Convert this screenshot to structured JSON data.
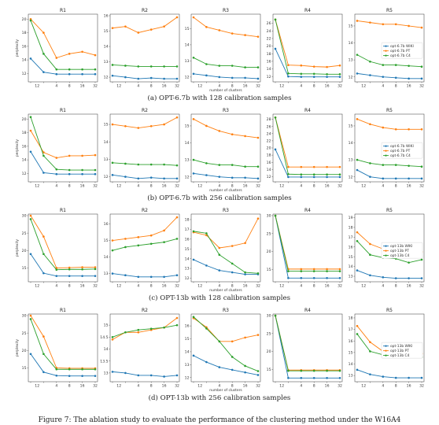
{
  "colors": {
    "wiki": "#1f77b4",
    "pt": "#ff7f0e",
    "c4": "#2ca02c"
  },
  "xlabel": "number of clusters",
  "ylabel": "perplexity",
  "x_ticks": [
    1,
    2,
    4,
    8,
    16,
    32
  ],
  "x_tick_labels": [
    "12",
    "4",
    "8",
    "16",
    "32"
  ],
  "figure_caption": "Figure 7: The ablation study to evaluate the performance of the clustering method under the W16A4",
  "chart_data": [
    {
      "type": "line",
      "group_caption": "(a) OPT-6.7b with 128 calibration samples",
      "legend": [
        "opt-6.7b WIKI",
        "opt-6.7b PT",
        "opt-6.7b C4"
      ],
      "panels": [
        {
          "title": "R1",
          "ylim": [
            11,
            20.5
          ],
          "yticks": [
            12,
            14,
            16,
            18,
            20
          ],
          "series": {
            "wiki": [
              14.2,
              12.2,
              11.9,
              11.9,
              11.9,
              11.9
            ],
            "pt": [
              20.0,
              18.0,
              14.3,
              14.9,
              15.2,
              14.7
            ],
            "c4": [
              19.8,
              14.9,
              12.6,
              12.6,
              12.6,
              12.6
            ]
          }
        },
        {
          "title": "R2",
          "ylim": [
            11.8,
            16.0
          ],
          "yticks": [
            12,
            13,
            14,
            15,
            16
          ],
          "series": {
            "wiki": [
              12.1,
              12.0,
              11.9,
              11.95,
              11.9,
              11.9
            ],
            "pt": [
              15.2,
              15.3,
              14.9,
              15.1,
              15.3,
              15.9
            ],
            "c4": [
              12.8,
              12.75,
              12.7,
              12.7,
              12.7,
              12.7
            ]
          }
        },
        {
          "title": "R3",
          "ylim": [
            11.8,
            15.8
          ],
          "yticks": [
            12,
            13,
            14,
            15
          ],
          "series": {
            "wiki": [
              12.2,
              12.1,
              12.0,
              11.95,
              11.95,
              11.9
            ],
            "pt": [
              15.7,
              15.1,
              14.9,
              14.7,
              14.6,
              14.5
            ],
            "c4": [
              13.2,
              12.8,
              12.7,
              12.7,
              12.6,
              12.6
            ]
          }
        },
        {
          "title": "R4",
          "ylim": [
            11,
            28
          ],
          "yticks": [
            12,
            14,
            16,
            18,
            20,
            22,
            24,
            26
          ],
          "series": {
            "wiki": [
              19.3,
              12.0,
              11.9,
              11.9,
              11.9,
              11.9
            ],
            "pt": [
              27.0,
              15.0,
              14.9,
              14.6,
              14.5,
              14.9
            ],
            "c4": [
              27.0,
              12.8,
              12.7,
              12.7,
              12.6,
              12.6
            ]
          }
        },
        {
          "title": "R5",
          "ylim": [
            11.8,
            15.6
          ],
          "yticks": [
            12,
            13,
            14,
            15
          ],
          "series": {
            "wiki": [
              12.2,
              12.1,
              12.0,
              11.95,
              11.9,
              11.9
            ],
            "pt": [
              15.3,
              15.2,
              15.1,
              15.1,
              15.0,
              14.9
            ],
            "c4": [
              13.3,
              12.9,
              12.7,
              12.7,
              12.65,
              12.6
            ]
          },
          "show_legend": true
        }
      ]
    },
    {
      "type": "line",
      "group_caption": "(b) OPT-6.7b with 256 calibration samples",
      "legend": [
        "opt-6.7b WIKI",
        "opt-6.7b PT",
        "opt-6.7b C4"
      ],
      "panels": [
        {
          "title": "R1",
          "ylim": [
            11,
            20.5
          ],
          "yticks": [
            12,
            14,
            16,
            18,
            20
          ],
          "series": {
            "wiki": [
              15.2,
              12.1,
              11.9,
              11.9,
              11.9,
              11.9
            ],
            "pt": [
              18.3,
              15.1,
              14.3,
              14.6,
              14.6,
              14.7
            ],
            "c4": [
              20.3,
              14.6,
              12.6,
              12.5,
              12.5,
              12.5
            ]
          }
        },
        {
          "title": "R2",
          "ylim": [
            11.8,
            15.5
          ],
          "yticks": [
            12,
            13,
            14,
            15
          ],
          "series": {
            "wiki": [
              12.1,
              12.0,
              11.9,
              11.95,
              11.9,
              11.9
            ],
            "pt": [
              15.0,
              14.9,
              14.8,
              14.9,
              15.0,
              15.4
            ],
            "c4": [
              12.8,
              12.75,
              12.7,
              12.7,
              12.7,
              12.65
            ]
          }
        },
        {
          "title": "R3",
          "ylim": [
            11.8,
            15.6
          ],
          "yticks": [
            12,
            13,
            14,
            15
          ],
          "series": {
            "wiki": [
              12.2,
              12.1,
              12.0,
              11.95,
              11.95,
              11.9
            ],
            "pt": [
              15.4,
              15.0,
              14.7,
              14.5,
              14.4,
              14.3
            ],
            "c4": [
              13.0,
              12.8,
              12.7,
              12.7,
              12.6,
              12.6
            ]
          }
        },
        {
          "title": "R4",
          "ylim": [
            11,
            29
          ],
          "yticks": [
            12,
            14,
            16,
            18,
            20,
            22,
            24,
            26,
            28
          ],
          "series": {
            "wiki": [
              19.6,
              11.9,
              11.9,
              11.9,
              11.9,
              11.9
            ],
            "pt": [
              28.5,
              14.7,
              14.7,
              14.7,
              14.7,
              14.7
            ],
            "c4": [
              28.5,
              12.7,
              12.6,
              12.6,
              12.6,
              12.6
            ]
          }
        },
        {
          "title": "R5",
          "ylim": [
            11.8,
            15.6
          ],
          "yticks": [
            12,
            13,
            14,
            15
          ],
          "series": {
            "wiki": [
              12.4,
              12.0,
              11.9,
              11.9,
              11.9,
              11.9
            ],
            "pt": [
              15.4,
              15.1,
              14.9,
              14.8,
              14.8,
              14.8
            ],
            "c4": [
              13.0,
              12.8,
              12.7,
              12.7,
              12.65,
              12.6
            ]
          },
          "show_legend": true
        }
      ]
    },
    {
      "type": "line",
      "group_caption": "(c) OPT-13b with 128 calibration samples",
      "legend": [
        "opt-13b WIKI",
        "opt-13b PT",
        "opt-13b C4"
      ],
      "panels": [
        {
          "title": "R1",
          "ylim": [
            11.5,
            30
          ],
          "yticks": [
            15,
            20,
            25,
            30
          ],
          "series": {
            "wiki": [
              19.0,
              13.5,
              12.7,
              12.7,
              12.7,
              12.7
            ],
            "pt": [
              30.0,
              24.0,
              15.0,
              15.1,
              15.2,
              15.2
            ],
            "c4": [
              29.0,
              19.0,
              14.5,
              14.6,
              14.6,
              14.7
            ]
          }
        },
        {
          "title": "R2",
          "ylim": [
            12.6,
            16.5
          ],
          "yticks": [
            13,
            14,
            15,
            16
          ],
          "series": {
            "wiki": [
              13.0,
              12.9,
              12.8,
              12.8,
              12.8,
              12.9
            ],
            "pt": [
              15.0,
              15.1,
              15.2,
              15.3,
              15.6,
              16.4
            ],
            "c4": [
              14.4,
              14.6,
              14.7,
              14.8,
              14.9,
              15.1
            ]
          }
        },
        {
          "title": "R3",
          "ylim": [
            11.8,
            18.4
          ],
          "yticks": [
            12,
            13,
            14,
            15,
            16,
            17,
            18
          ],
          "series": {
            "wiki": [
              13.9,
              13.3,
              12.8,
              12.6,
              12.4,
              12.4
            ],
            "pt": [
              16.7,
              16.4,
              15.1,
              15.3,
              15.6,
              18.1
            ],
            "c4": [
              16.8,
              16.6,
              14.4,
              13.5,
              12.6,
              12.5
            ]
          }
        },
        {
          "title": "R4",
          "ylim": [
            12,
            30
          ],
          "yticks": [
            15,
            20,
            25,
            30
          ],
          "series": {
            "wiki": [
              30.0,
              12.6,
              12.6,
              12.6,
              12.6,
              12.6
            ],
            "pt": [
              30.0,
              15.1,
              15.1,
              15.1,
              15.1,
              15.1
            ],
            "c4": [
              30.0,
              14.5,
              14.5,
              14.5,
              14.5,
              14.5
            ]
          }
        },
        {
          "title": "R5",
          "ylim": [
            12.6,
            19.2
          ],
          "yticks": [
            13,
            14,
            15,
            16,
            17,
            18,
            19
          ],
          "series": {
            "wiki": [
              13.6,
              13.1,
              12.9,
              12.8,
              12.8,
              12.8
            ],
            "pt": [
              17.5,
              16.3,
              15.8,
              15.7,
              15.6,
              15.5
            ],
            "c4": [
              16.6,
              15.2,
              14.9,
              14.8,
              14.4,
              14.7
            ]
          },
          "show_legend": true
        }
      ]
    },
    {
      "type": "line",
      "group_caption": "(d) OPT-13b with 256 calibration samples",
      "legend": [
        "opt-13b WIKI",
        "opt-13b PT",
        "opt-13b C4"
      ],
      "panels": [
        {
          "title": "R1",
          "ylim": [
            11.5,
            30
          ],
          "yticks": [
            15,
            20,
            25,
            30
          ],
          "series": {
            "wiki": [
              19.0,
              13.8,
              12.8,
              12.7,
              12.7,
              12.7
            ],
            "pt": [
              30.0,
              24.0,
              15.0,
              14.9,
              14.9,
              14.9
            ],
            "c4": [
              29.0,
              19.0,
              14.6,
              14.6,
              14.6,
              14.6
            ]
          }
        },
        {
          "title": "R2",
          "ylim": [
            12.7,
            15.4
          ],
          "yticks": [
            13.0,
            13.5,
            14.0,
            14.5,
            15.0
          ],
          "series": {
            "wiki": [
              13.05,
              13.0,
              12.9,
              12.9,
              12.85,
              12.9
            ],
            "pt": [
              14.4,
              14.7,
              14.7,
              14.8,
              14.9,
              15.3
            ],
            "c4": [
              14.5,
              14.7,
              14.8,
              14.85,
              14.9,
              15.0
            ]
          }
        },
        {
          "title": "R3",
          "ylim": [
            11.8,
            16.8
          ],
          "yticks": [
            12,
            13,
            14,
            15,
            16
          ],
          "series": {
            "wiki": [
              13.7,
              13.2,
              12.8,
              12.6,
              12.4,
              12.2
            ],
            "pt": [
              16.6,
              15.9,
              14.8,
              14.8,
              15.1,
              15.3
            ],
            "c4": [
              16.7,
              15.8,
              14.8,
              13.6,
              12.9,
              12.5
            ]
          }
        },
        {
          "title": "R4",
          "ylim": [
            12,
            30
          ],
          "yticks": [
            15,
            20,
            25,
            30
          ],
          "series": {
            "wiki": [
              30.0,
              12.6,
              12.6,
              12.6,
              12.6,
              12.6
            ],
            "pt": [
              30.0,
              14.8,
              14.8,
              14.8,
              14.8,
              14.8
            ],
            "c4": [
              30.0,
              14.6,
              14.6,
              14.6,
              14.6,
              14.6
            ]
          }
        },
        {
          "title": "R5",
          "ylim": [
            12.6,
            18.2
          ],
          "yticks": [
            13,
            14,
            15,
            16,
            17,
            18
          ],
          "series": {
            "wiki": [
              13.5,
              13.1,
              12.9,
              12.8,
              12.8,
              12.8
            ],
            "pt": [
              17.3,
              15.9,
              15.1,
              14.9,
              14.9,
              14.9
            ],
            "c4": [
              16.6,
              15.1,
              14.8,
              14.7,
              14.6,
              14.6
            ]
          },
          "show_legend": true
        }
      ]
    }
  ]
}
